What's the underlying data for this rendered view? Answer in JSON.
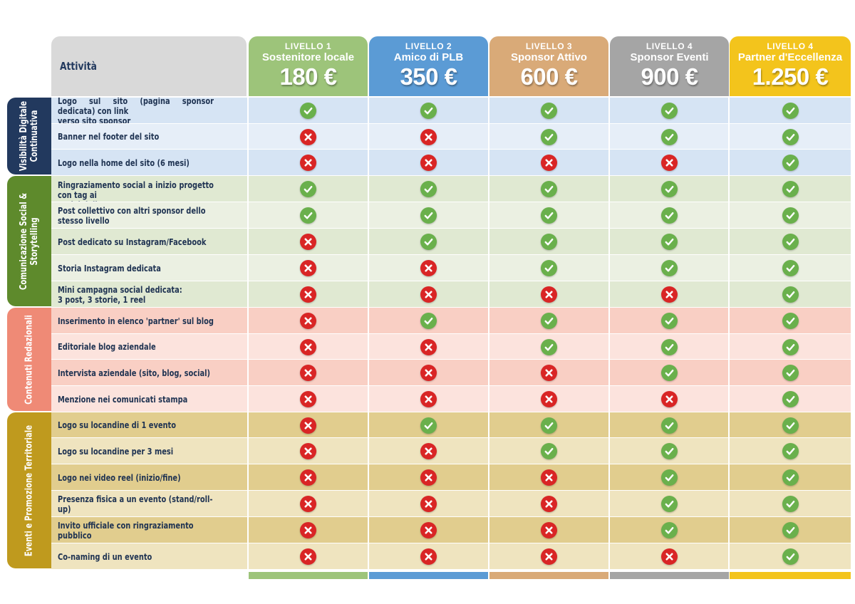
{
  "header": {
    "activity_label": "Attività",
    "levels": [
      {
        "level": "LIVELLO 1",
        "name": "Sostenitore locale",
        "price": "180 €",
        "color": "#9dc47a",
        "light": "#d6e7bf"
      },
      {
        "level": "LIVELLO 2",
        "name": "Amico di PLB",
        "price": "350 €",
        "color": "#5b9bd5",
        "light": "#a9c9ea"
      },
      {
        "level": "LIVELLO 3",
        "name": "Sponsor Attivo",
        "price": "600 €",
        "color": "#d9aa78",
        "light": "#ecd1b4"
      },
      {
        "level": "LIVELLO 4",
        "name": "Sponsor Eventi",
        "price": "900 €",
        "color": "#a5a5a5",
        "light": "#d2d2d2"
      },
      {
        "level": "LIVELLO 4",
        "name": "Partner d'Eccellenza",
        "price": "1.250 €",
        "color": "#f3c41c",
        "light": "#f9de7a"
      }
    ]
  },
  "sections": [
    {
      "title": "Visibilità Digitale\nContinuativa",
      "color": "#22395e",
      "shade_a": "#d6e4f4",
      "shade_b": "#e6eef8",
      "rows": [
        {
          "label": "Logo sul sito (pagina sponsor dedicata) con link\nverso sito sponsor",
          "values": [
            true,
            true,
            true,
            true,
            true
          ]
        },
        {
          "label": "Banner nel footer del sito",
          "values": [
            false,
            false,
            true,
            true,
            true
          ]
        },
        {
          "label": "Logo nella home del sito (6 mesi)",
          "values": [
            false,
            false,
            false,
            false,
            true
          ]
        }
      ]
    },
    {
      "title": "Comunicazione Social &\nStorytelling",
      "color": "#5e8a2c",
      "shade_a": "#e0e9d2",
      "shade_b": "#ebf0e2",
      "rows": [
        {
          "label": "Ringraziamento social a inizio progetto con tag ai\nsocial dello sponsor",
          "values": [
            true,
            true,
            true,
            true,
            true
          ]
        },
        {
          "label": "Post collettivo con altri sponsor dello stesso livello",
          "values": [
            true,
            true,
            true,
            true,
            true
          ]
        },
        {
          "label": "Post dedicato su Instagram/Facebook",
          "values": [
            false,
            true,
            true,
            true,
            true
          ]
        },
        {
          "label": "Storia Instagram dedicata",
          "values": [
            false,
            false,
            true,
            true,
            true
          ]
        },
        {
          "label": "Mini campagna social dedicata:\n3 post, 3 storie, 1 reel",
          "values": [
            false,
            false,
            false,
            false,
            true
          ]
        }
      ]
    },
    {
      "title": "Contenuti Redazionali",
      "color": "#ef8a76",
      "shade_a": "#f9cfc4",
      "shade_b": "#fce3dd",
      "rows": [
        {
          "label": "Inserimento in elenco 'partner' sul blog",
          "values": [
            false,
            true,
            true,
            true,
            true
          ]
        },
        {
          "label": "Editoriale blog aziendale",
          "values": [
            false,
            false,
            true,
            true,
            true
          ]
        },
        {
          "label": "Intervista aziendale (sito, blog, social)",
          "values": [
            false,
            false,
            false,
            true,
            true
          ]
        },
        {
          "label": "Menzione nei comunicati stampa",
          "values": [
            false,
            false,
            false,
            false,
            true
          ]
        }
      ]
    },
    {
      "title": "Eventi e Promozione Territoriale",
      "color": "#bf9a1e",
      "shade_a": "#e1cd8e",
      "shade_b": "#efe4bf",
      "rows": [
        {
          "label": "Logo su locandine di 1 evento",
          "values": [
            false,
            true,
            true,
            true,
            true
          ]
        },
        {
          "label": "Logo su locandine per 3 mesi",
          "values": [
            false,
            false,
            true,
            true,
            true
          ]
        },
        {
          "label": "Logo nei video reel (inizio/fine)",
          "values": [
            false,
            false,
            false,
            true,
            true
          ]
        },
        {
          "label": "Presenza fisica a un evento (stand/roll-up)",
          "values": [
            false,
            false,
            false,
            true,
            true
          ]
        },
        {
          "label": "Invito ufficiale con ringraziamento pubblico",
          "values": [
            false,
            false,
            false,
            true,
            true
          ]
        },
        {
          "label": "Co-naming di un evento",
          "values": [
            false,
            false,
            false,
            false,
            true
          ]
        }
      ]
    }
  ]
}
